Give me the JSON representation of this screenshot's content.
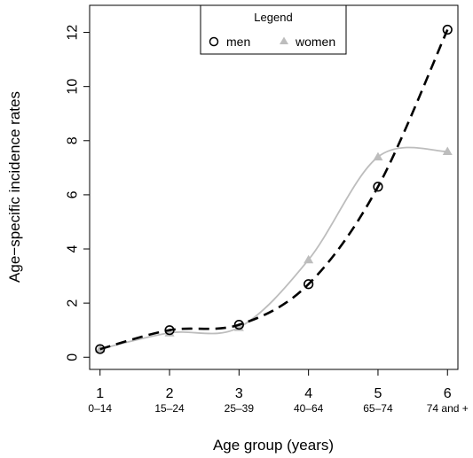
{
  "chart_data": {
    "type": "line",
    "xlabel": "Age group (years)",
    "ylabel": "Age−specific incidence rates",
    "x": [
      1,
      2,
      3,
      4,
      5,
      6
    ],
    "x_tick_labels": [
      "1",
      "2",
      "3",
      "4",
      "5",
      "6"
    ],
    "x_sub_labels": [
      "0–14",
      "15–24",
      "25–39",
      "40–64",
      "65–74",
      "74 and +"
    ],
    "y_ticks": [
      0,
      2,
      4,
      6,
      8,
      10,
      12
    ],
    "y_tick_labels": [
      "0",
      "2",
      "4",
      "6",
      "8",
      "10",
      "12"
    ],
    "xlim": [
      0.85,
      6.15
    ],
    "ylim": [
      -0.45,
      13.0
    ],
    "legend": {
      "title": "Legend",
      "position": "top-center"
    },
    "series": [
      {
        "name": "men",
        "values": [
          0.3,
          1.0,
          1.2,
          2.7,
          6.3,
          12.1
        ],
        "color": "#000000",
        "marker": "open-circle",
        "line": "dashed"
      },
      {
        "name": "women",
        "values": [
          0.3,
          0.9,
          1.1,
          3.6,
          7.4,
          7.6
        ],
        "color": "#bdbdbd",
        "marker": "filled-triangle",
        "line": "solid"
      }
    ]
  }
}
